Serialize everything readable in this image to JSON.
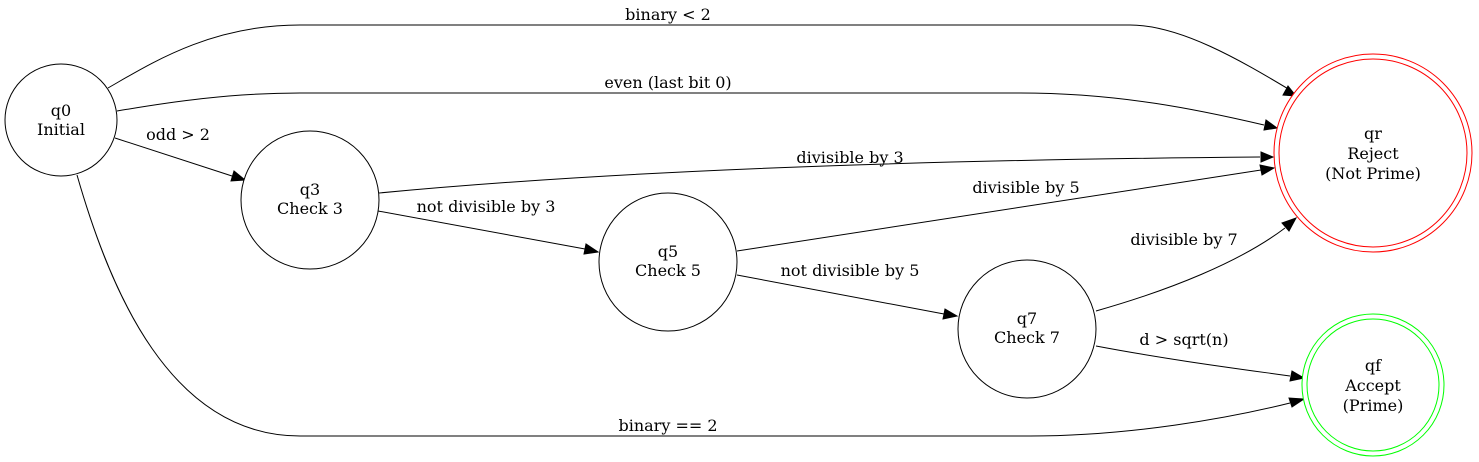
{
  "colors": {
    "reject_outline": "#ff0000",
    "accept_outline": "#00ff00",
    "default_outline": "#000000"
  },
  "nodes": {
    "q0": {
      "id": "q0",
      "name": "Initial"
    },
    "q3": {
      "id": "q3",
      "name": "Check 3"
    },
    "q5": {
      "id": "q5",
      "name": "Check 5"
    },
    "q7": {
      "id": "q7",
      "name": "Check 7"
    },
    "qr": {
      "id": "qr",
      "name": "Reject",
      "note": "(Not Prime)"
    },
    "qf": {
      "id": "qf",
      "name": "Accept",
      "note": "(Prime)"
    }
  },
  "edges": {
    "q0_qr_binary": {
      "from": "q0",
      "to": "qr",
      "label": "binary < 2"
    },
    "q0_qr_even": {
      "from": "q0",
      "to": "qr",
      "label": "even (last bit 0)"
    },
    "q0_q3": {
      "from": "q0",
      "to": "q3",
      "label": "odd > 2"
    },
    "q0_qf": {
      "from": "q0",
      "to": "qf",
      "label": "binary == 2"
    },
    "q3_qr": {
      "from": "q3",
      "to": "qr",
      "label": "divisible by 3"
    },
    "q3_q5": {
      "from": "q3",
      "to": "q5",
      "label": "not divisible by 3"
    },
    "q5_qr": {
      "from": "q5",
      "to": "qr",
      "label": "divisible by 5"
    },
    "q5_q7": {
      "from": "q5",
      "to": "q7",
      "label": "not divisible by 5"
    },
    "q7_qr": {
      "from": "q7",
      "to": "qr",
      "label": "divisible by 7"
    },
    "q7_qf": {
      "from": "q7",
      "to": "qf",
      "label": "d > sqrt(n)"
    }
  }
}
